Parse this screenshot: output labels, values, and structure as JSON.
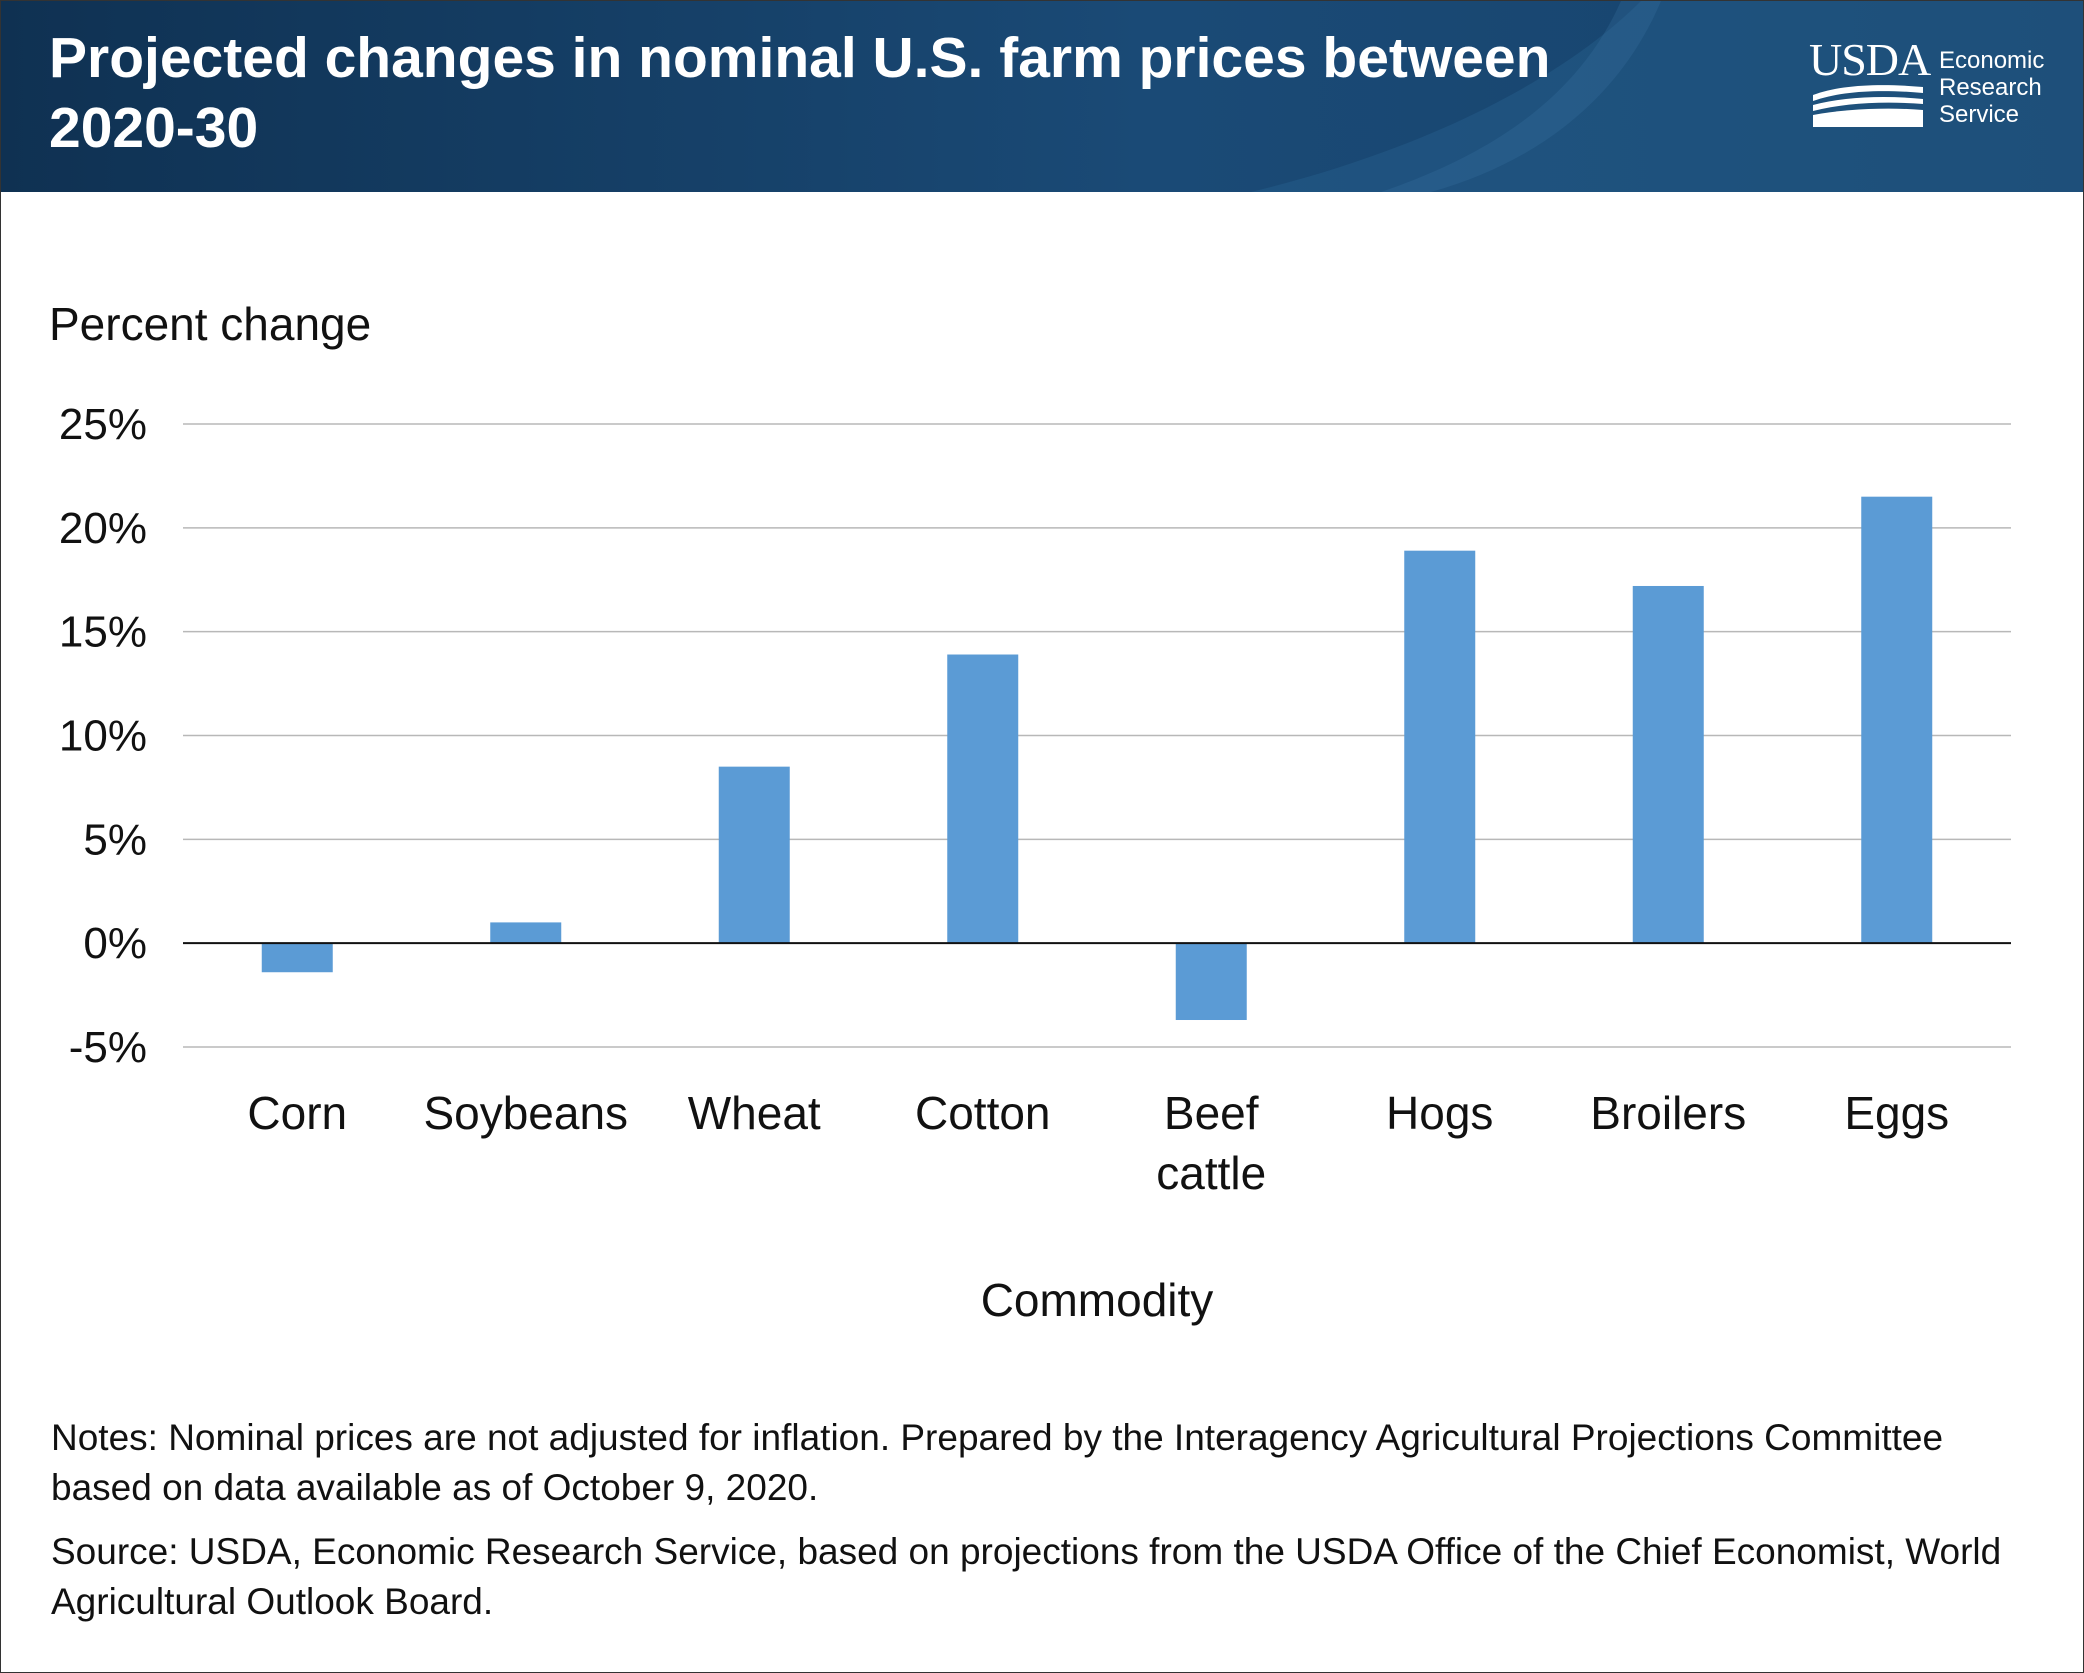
{
  "header": {
    "title": "Projected changes in nominal U.S. farm prices between 2020-30",
    "colors": {
      "dark": "#0f3152",
      "mid": "#1b4b78",
      "light": "#2b6696"
    }
  },
  "logo": {
    "wordmark": "USDA",
    "lines": [
      "Economic",
      "Research",
      "Service"
    ]
  },
  "chart_data": {
    "type": "bar",
    "title": "Projected changes in nominal U.S. farm prices between 2020-30",
    "ylabel": "Percent change",
    "xlabel": "Commodity",
    "categories": [
      "Corn",
      "Soybeans",
      "Wheat",
      "Cotton",
      "Beef cattle",
      "Hogs",
      "Broilers",
      "Eggs"
    ],
    "category_lines": [
      [
        "Corn"
      ],
      [
        "Soybeans"
      ],
      [
        "Wheat"
      ],
      [
        "Cotton"
      ],
      [
        "Beef",
        "cattle"
      ],
      [
        "Hogs"
      ],
      [
        "Broilers"
      ],
      [
        "Eggs"
      ]
    ],
    "values": [
      -1.4,
      1.0,
      8.5,
      13.9,
      -3.7,
      18.9,
      17.2,
      21.5
    ],
    "ylim": [
      -5,
      25
    ],
    "yticks": [
      25,
      20,
      15,
      10,
      5,
      0,
      -5
    ],
    "ytick_labels": [
      "25%",
      "20%",
      "15%",
      "10%",
      "5%",
      "0%",
      "-5%"
    ],
    "grid": true,
    "legend": "none",
    "bar_color": "#5b9bd5",
    "grid_color": "#b8b8b8",
    "zero_line_color": "#111111"
  },
  "notes": {
    "notes_text": "Notes: Nominal prices are not adjusted for inflation. Prepared by the Interagency Agricultural Projections Committee based on data available as of October 9, 2020.",
    "source_text": "Source: USDA, Economic Research Service, based on projections from the USDA Office of the Chief Economist, World Agricultural Outlook Board."
  }
}
